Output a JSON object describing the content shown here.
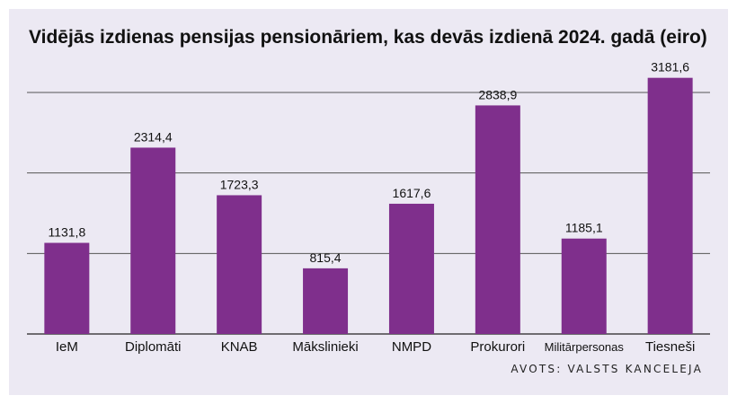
{
  "chart_data": {
    "type": "bar",
    "title": "Vidējās izdienas pensijas pensionāriem, kas devās izdienā 2024. gadā (eiro)",
    "categories": [
      "IeM",
      "Diplomāti",
      "KNAB",
      "Mākslinieki",
      "NMPD",
      "Prokurori",
      "Militārpersonas",
      "Tiesneši"
    ],
    "values": [
      1131.8,
      2314.4,
      1723.3,
      815.4,
      1617.6,
      2838.9,
      1185.1,
      3181.6
    ],
    "value_labels": [
      "1131,8",
      "2314,4",
      "1723,3",
      "815,4",
      "1617,6",
      "2838,9",
      "1185,1",
      "3181,6"
    ],
    "ylim": [
      0,
      3200
    ],
    "gridlines": [
      1000,
      2000,
      3000
    ],
    "grid": true,
    "bar_color": "#7f2f8c",
    "source": "AVOTS: VALSTS KANCELEJA"
  }
}
